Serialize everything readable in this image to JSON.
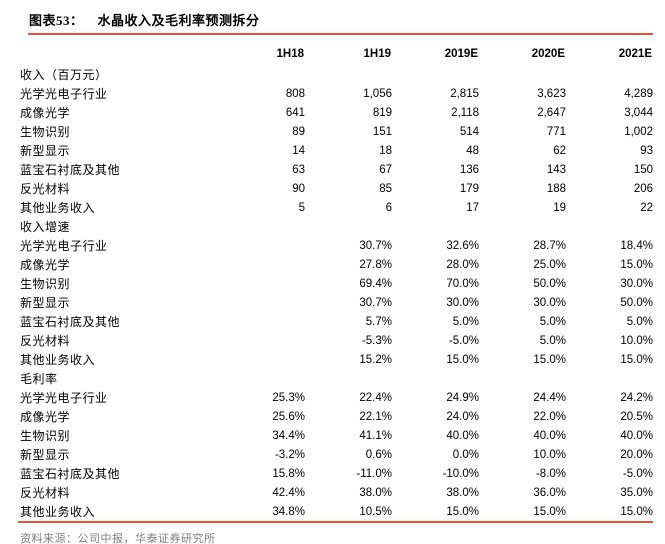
{
  "title": {
    "label": "图表53：",
    "text": "水晶收入及毛利率预测拆分"
  },
  "table": {
    "columns": [
      "1H18",
      "1H19",
      "2019E",
      "2020E",
      "2021E"
    ],
    "rows": [
      {
        "label": "收入（百万元）",
        "indent": 0,
        "values": [
          "",
          "",
          "",
          "",
          ""
        ]
      },
      {
        "label": "光学光电子行业",
        "indent": 1,
        "values": [
          "808",
          "1,056",
          "2,815",
          "3,623",
          "4,289"
        ]
      },
      {
        "label": "成像光学",
        "indent": 2,
        "values": [
          "641",
          "819",
          "2,118",
          "2,647",
          "3,044"
        ]
      },
      {
        "label": "生物识别",
        "indent": 2,
        "values": [
          "89",
          "151",
          "514",
          "771",
          "1,002"
        ]
      },
      {
        "label": "新型显示",
        "indent": 2,
        "values": [
          "14",
          "18",
          "48",
          "62",
          "93"
        ]
      },
      {
        "label": "蓝宝石衬底及其他",
        "indent": 2,
        "values": [
          "63",
          "67",
          "136",
          "143",
          "150"
        ]
      },
      {
        "label": "反光材料",
        "indent": 1,
        "values": [
          "90",
          "85",
          "179",
          "188",
          "206"
        ]
      },
      {
        "label": "其他业务收入",
        "indent": 1,
        "values": [
          "5",
          "6",
          "17",
          "19",
          "22"
        ]
      },
      {
        "label": "收入增速",
        "indent": 0,
        "values": [
          "",
          "",
          "",
          "",
          ""
        ]
      },
      {
        "label": "光学光电子行业",
        "indent": 1,
        "values": [
          "",
          "30.7%",
          "32.6%",
          "28.7%",
          "18.4%"
        ]
      },
      {
        "label": "成像光学",
        "indent": 2,
        "values": [
          "",
          "27.8%",
          "28.0%",
          "25.0%",
          "15.0%"
        ]
      },
      {
        "label": "生物识别",
        "indent": 2,
        "values": [
          "",
          "69.4%",
          "70.0%",
          "50.0%",
          "30.0%"
        ]
      },
      {
        "label": "新型显示",
        "indent": 2,
        "values": [
          "",
          "30.7%",
          "30.0%",
          "30.0%",
          "50.0%"
        ]
      },
      {
        "label": "蓝宝石衬底及其他",
        "indent": 2,
        "values": [
          "",
          "5.7%",
          "5.0%",
          "5.0%",
          "5.0%"
        ]
      },
      {
        "label": "反光材料",
        "indent": 1,
        "values": [
          "",
          "-5.3%",
          "-5.0%",
          "5.0%",
          "10.0%"
        ]
      },
      {
        "label": "其他业务收入",
        "indent": 1,
        "values": [
          "",
          "15.2%",
          "15.0%",
          "15.0%",
          "15.0%"
        ]
      },
      {
        "label": "毛利率",
        "indent": 0,
        "values": [
          "",
          "",
          "",
          "",
          ""
        ]
      },
      {
        "label": "光学光电子行业",
        "indent": 1,
        "values": [
          "25.3%",
          "22.4%",
          "24.9%",
          "24.4%",
          "24.2%"
        ]
      },
      {
        "label": "成像光学",
        "indent": 2,
        "values": [
          "25.6%",
          "22.1%",
          "24.0%",
          "22.0%",
          "20.5%"
        ]
      },
      {
        "label": "生物识别",
        "indent": 2,
        "values": [
          "34.4%",
          "41.1%",
          "40.0%",
          "40.0%",
          "40.0%"
        ]
      },
      {
        "label": "新型显示",
        "indent": 2,
        "values": [
          "-3.2%",
          "0.6%",
          "0.0%",
          "10.0%",
          "20.0%"
        ]
      },
      {
        "label": "蓝宝石衬底及其他",
        "indent": 2,
        "values": [
          "15.8%",
          "-11.0%",
          "-10.0%",
          "-8.0%",
          "-5.0%"
        ]
      },
      {
        "label": "反光材料",
        "indent": 1,
        "values": [
          "42.4%",
          "38.0%",
          "38.0%",
          "36.0%",
          "35.0%"
        ]
      },
      {
        "label": "其他业务收入",
        "indent": 1,
        "values": [
          "34.8%",
          "10.5%",
          "15.0%",
          "15.0%",
          "15.0%"
        ]
      }
    ]
  },
  "footer": {
    "source": "资料来源：公司中报，华泰证券研究所"
  },
  "colors": {
    "accent_line": "#E8503A",
    "footer_text": "#7E7E7E",
    "text": "#000000"
  }
}
